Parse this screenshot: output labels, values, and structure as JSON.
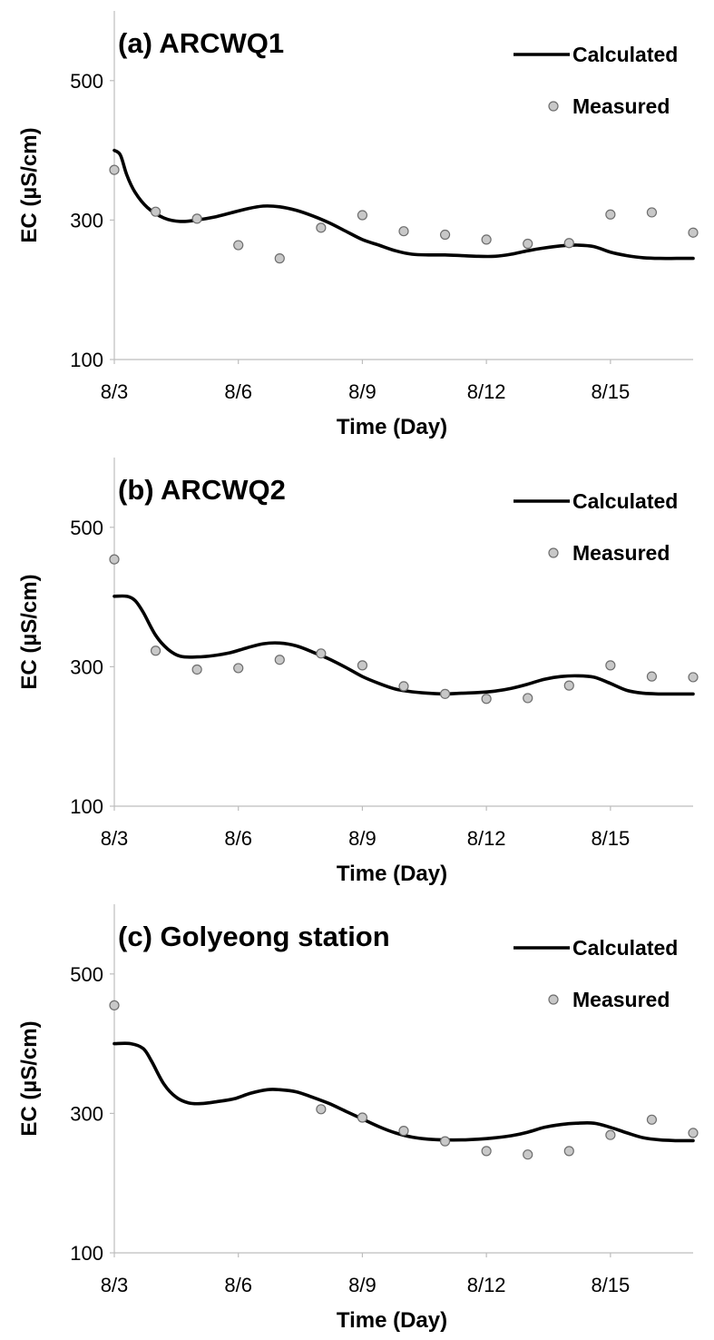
{
  "chart_data": [
    {
      "type": "line",
      "title": "(a) ARCWQ1",
      "xlabel": "Time (Day)",
      "ylabel": "EC (µS/cm)",
      "xlim": [
        0,
        14
      ],
      "ylim": [
        100,
        600
      ],
      "y_ticks": [
        100,
        300,
        500
      ],
      "x_ticks": [
        0,
        3,
        6,
        9,
        12
      ],
      "x_tick_labels": [
        "8/3",
        "8/6",
        "8/9",
        "8/12",
        "8/15"
      ],
      "legend": {
        "position": "top-right",
        "entries": [
          "Calculated",
          "Measured"
        ]
      },
      "series": [
        {
          "name": "Calculated",
          "kind": "line",
          "x": [
            0,
            0.15,
            0.3,
            0.5,
            0.8,
            1.2,
            1.6,
            2,
            2.4,
            2.8,
            3.2,
            3.6,
            4,
            4.4,
            4.8,
            5.2,
            5.6,
            6,
            6.4,
            6.8,
            7.2,
            7.6,
            8,
            8.4,
            8.8,
            9.2,
            9.6,
            10,
            10.4,
            10.8,
            11.2,
            11.6,
            12,
            12.4,
            12.8,
            13.2,
            13.6,
            14
          ],
          "y": [
            400,
            393,
            365,
            340,
            318,
            303,
            298,
            300,
            304,
            310,
            316,
            320,
            319,
            314,
            306,
            296,
            284,
            272,
            264,
            256,
            251,
            250,
            250,
            249,
            248,
            248,
            251,
            256,
            260,
            263,
            264,
            262,
            254,
            249,
            246,
            245,
            245,
            245
          ]
        },
        {
          "name": "Measured",
          "kind": "scatter",
          "x": [
            0,
            1,
            2,
            3,
            4,
            5,
            6,
            7,
            8,
            9,
            10,
            11,
            12,
            13,
            14
          ],
          "y": [
            372,
            312,
            302,
            264,
            245,
            289,
            307,
            284,
            279,
            272,
            266,
            267,
            308,
            311,
            282
          ]
        }
      ]
    },
    {
      "type": "line",
      "title": "(b) ARCWQ2",
      "xlabel": "Time (Day)",
      "ylabel": "EC (µS/cm)",
      "xlim": [
        0,
        14
      ],
      "ylim": [
        100,
        600
      ],
      "y_ticks": [
        100,
        300,
        500
      ],
      "x_ticks": [
        0,
        3,
        6,
        9,
        12
      ],
      "x_tick_labels": [
        "8/3",
        "8/6",
        "8/9",
        "8/12",
        "8/15"
      ],
      "legend": {
        "position": "top-right",
        "entries": [
          "Calculated",
          "Measured"
        ]
      },
      "series": [
        {
          "name": "Calculated",
          "kind": "line",
          "x": [
            0,
            0.3,
            0.5,
            0.7,
            1,
            1.3,
            1.6,
            2,
            2.4,
            2.8,
            3.2,
            3.6,
            4,
            4.4,
            4.8,
            5.2,
            5.6,
            6,
            6.4,
            6.8,
            7.2,
            7.6,
            8,
            8.4,
            8.8,
            9.2,
            9.6,
            10,
            10.4,
            10.8,
            11.2,
            11.6,
            12,
            12.4,
            12.8,
            13.2,
            13.6,
            14
          ],
          "y": [
            401,
            401,
            395,
            378,
            345,
            325,
            315,
            314,
            316,
            320,
            327,
            333,
            334,
            330,
            321,
            311,
            299,
            286,
            276,
            268,
            264,
            262,
            261,
            262,
            263,
            265,
            269,
            275,
            282,
            286,
            287,
            285,
            276,
            266,
            262,
            261,
            261,
            261
          ]
        },
        {
          "name": "Measured",
          "kind": "scatter",
          "x": [
            0,
            1,
            2,
            3,
            4,
            5,
            6,
            7,
            8,
            9,
            10,
            11,
            12,
            13,
            14
          ],
          "y": [
            454,
            323,
            296,
            298,
            310,
            319,
            302,
            272,
            261,
            254,
            255,
            273,
            302,
            286,
            285
          ]
        }
      ]
    },
    {
      "type": "line",
      "title": "(c) Golyeong station",
      "xlabel": "Time (Day)",
      "ylabel": "EC (µS/cm)",
      "xlim": [
        0,
        14
      ],
      "ylim": [
        100,
        600
      ],
      "y_ticks": [
        100,
        300,
        500
      ],
      "x_ticks": [
        0,
        3,
        6,
        9,
        12
      ],
      "x_tick_labels": [
        "8/3",
        "8/6",
        "8/9",
        "8/12",
        "8/15"
      ],
      "legend": {
        "position": "top-right",
        "entries": [
          "Calculated",
          "Measured"
        ]
      },
      "series": [
        {
          "name": "Calculated",
          "kind": "line",
          "x": [
            0,
            0.4,
            0.7,
            0.9,
            1.2,
            1.5,
            1.8,
            2.1,
            2.5,
            2.9,
            3.3,
            3.7,
            4,
            4.4,
            4.8,
            5.2,
            5.6,
            6,
            6.4,
            6.8,
            7.2,
            7.6,
            8,
            8.4,
            8.8,
            9.2,
            9.6,
            10,
            10.4,
            10.8,
            11.2,
            11.6,
            12,
            12.4,
            12.8,
            13.2,
            13.6,
            14
          ],
          "y": [
            400,
            400,
            393,
            375,
            342,
            323,
            315,
            314,
            317,
            321,
            329,
            334,
            334,
            331,
            323,
            314,
            303,
            292,
            281,
            272,
            266,
            263,
            262,
            262,
            263,
            265,
            268,
            273,
            280,
            284,
            286,
            286,
            280,
            272,
            265,
            262,
            261,
            261
          ]
        },
        {
          "name": "Measured",
          "kind": "scatter",
          "x": [
            0,
            5,
            6,
            7,
            8,
            9,
            10,
            11,
            12,
            13,
            14
          ],
          "y": [
            455,
            306,
            294,
            275,
            260,
            246,
            241,
            246,
            269,
            291,
            272
          ]
        }
      ]
    }
  ]
}
